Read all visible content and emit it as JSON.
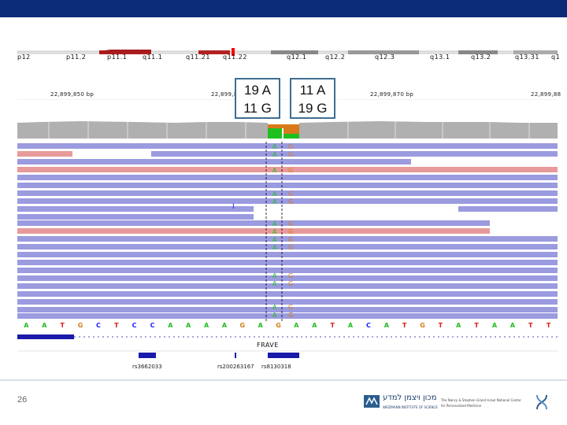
{
  "colors": {
    "title_bar": "#0b2a78",
    "read_blue": "#9b9be0",
    "read_pink": "#e89a9a",
    "base_A": "#1fbf1f",
    "base_G": "#d87a1a",
    "base_C": "#1a1aff",
    "base_T": "#e01a1a",
    "coverage": "#b0b0b0",
    "callout_border": "#3d6e93"
  },
  "ideogram": {
    "bands": [
      "p12",
      "p11.2",
      "p11.1",
      "q11.1",
      "q11.21",
      "q11.22",
      "q12.1",
      "q12.2",
      "q12.3",
      "q13.1",
      "q13.2",
      "q13.31",
      "q1"
    ]
  },
  "ruler": {
    "coords": [
      "22,899,850 bp",
      "22,899,860",
      "22,899,870 bp",
      "22,899,88"
    ]
  },
  "callouts": {
    "left": {
      "line1": "19 A",
      "line2": "11 G"
    },
    "right": {
      "line1": "11 A",
      "line2": "19 G"
    }
  },
  "reads": {
    "col1_bases": [
      "A",
      "A",
      "A",
      "A",
      "A",
      "A",
      "A",
      "A",
      "A",
      "A",
      "A",
      "A",
      "A",
      "A"
    ],
    "col2_bases": [
      "G",
      "G",
      "G",
      "G",
      "G",
      "G",
      "G",
      "G",
      "G",
      "G",
      "G",
      "G",
      "G",
      "G"
    ],
    "insertion_marker": "I"
  },
  "sequence": [
    "A",
    "A",
    "T",
    "G",
    "C",
    "T",
    "C",
    "C",
    "A",
    "A",
    "A",
    "A",
    "G",
    "A",
    "G",
    "A",
    "A",
    "T",
    "A",
    "C",
    "A",
    "T",
    "G",
    "T",
    "A",
    "T",
    "A",
    "A",
    "T",
    "T"
  ],
  "gene": {
    "name": "FRAVE"
  },
  "snps": [
    "rs3662033",
    "rs200263167",
    "rs8130318"
  ],
  "slide": {
    "number": "26"
  },
  "footer": {
    "institute_he": "מכון ויצמן למדע",
    "institute_en_line1": "WEIZMANN INSTITUTE OF SCIENCE",
    "right_line1": "The Nancy & Stephen Grand Israel National Center",
    "right_line2": "for Personalized Medicine"
  }
}
